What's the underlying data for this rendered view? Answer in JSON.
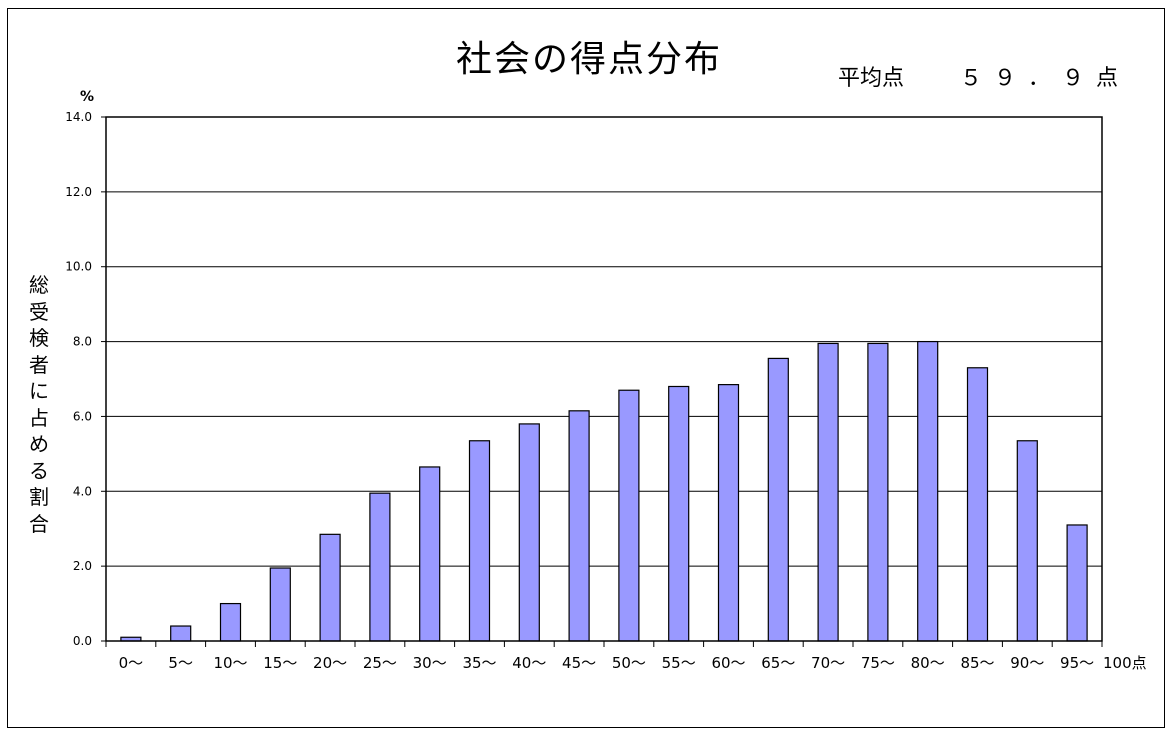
{
  "chart_data": {
    "type": "bar",
    "title": "社会の得点分布",
    "subtitle_label": "平均点",
    "subtitle_value": "５９．９点",
    "ylabel": "総受検者に占める割合",
    "yunit": "%",
    "xlabel": "",
    "end_label": "100点",
    "ylim": [
      0,
      14
    ],
    "yticks": [
      "0.0",
      "2.0",
      "4.0",
      "6.0",
      "8.0",
      "10.0",
      "12.0",
      "14.0"
    ],
    "grid": true,
    "bar_color": "#9999ff",
    "categories": [
      "0～",
      "5～",
      "10～",
      "15～",
      "20～",
      "25～",
      "30～",
      "35～",
      "40～",
      "45～",
      "50～",
      "55～",
      "60～",
      "65～",
      "70～",
      "75～",
      "80～",
      "85～",
      "90～",
      "95～"
    ],
    "values": [
      0.1,
      0.4,
      1.0,
      1.95,
      2.85,
      3.95,
      4.65,
      5.35,
      5.8,
      6.15,
      6.7,
      6.8,
      6.85,
      7.55,
      7.95,
      7.95,
      8.0,
      7.3,
      5.35,
      3.1
    ]
  }
}
